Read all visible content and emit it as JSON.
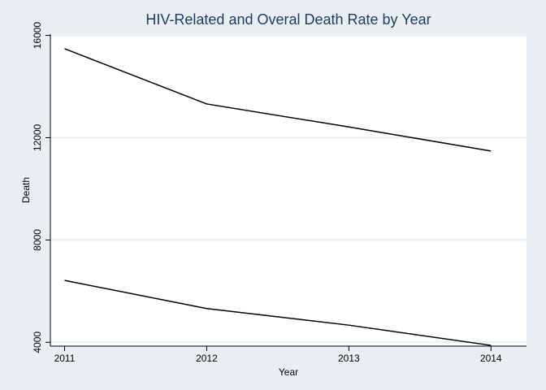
{
  "chart_data": {
    "type": "line",
    "title": "HIV-Related and Overal Death Rate by Year",
    "xlabel": "Year",
    "ylabel": "Death",
    "x": [
      2011,
      2012,
      2013,
      2014
    ],
    "xticks": [
      "2011",
      "2012",
      "2013",
      "2014"
    ],
    "yticks": [
      "4000",
      "8000",
      "12000",
      "16000"
    ],
    "xlim": [
      2010.9,
      2014.25
    ],
    "ylim": [
      3850,
      16050
    ],
    "grid": true,
    "series": [
      {
        "values": [
          15480,
          13320,
          12420,
          11480
        ]
      },
      {
        "values": [
          6420,
          5320,
          4670,
          3880
        ]
      }
    ],
    "colors": {
      "background": "#e9eef3",
      "plot_area": "#ffffff",
      "grid": "#e8eef4",
      "line": "#000000",
      "title": "#1f3a5a"
    }
  }
}
